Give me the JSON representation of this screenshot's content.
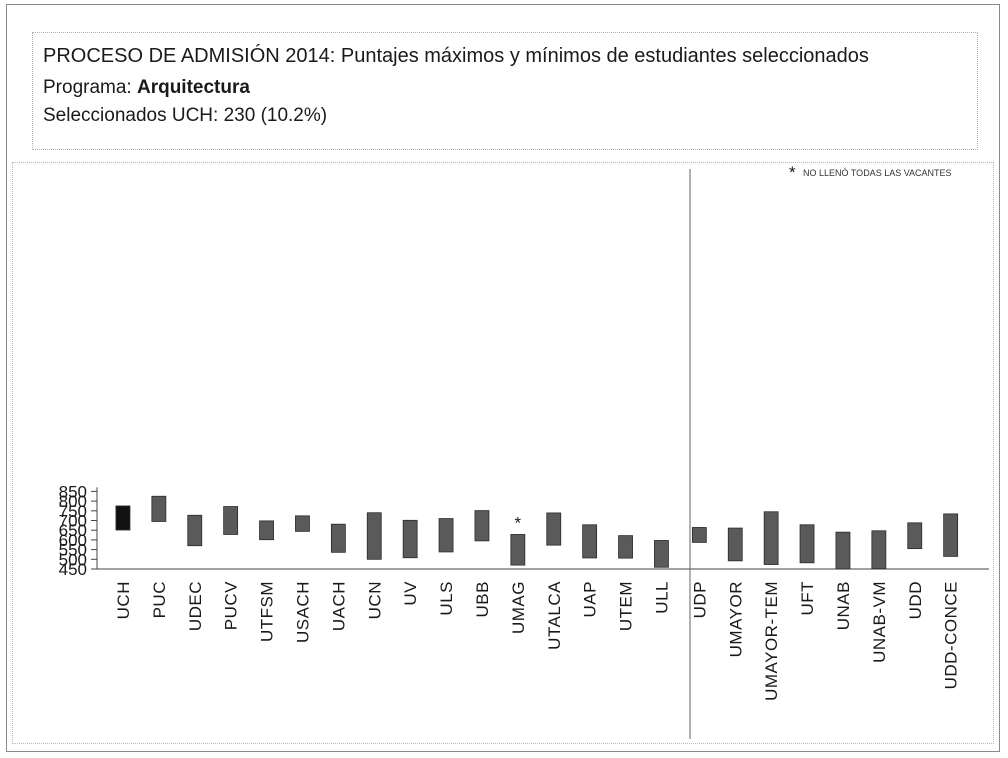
{
  "header": {
    "title": "PROCESO DE ADMISIÓN 2014: Puntajes máximos y mínimos de estudiantes seleccionados",
    "program_label": "Programa: ",
    "program_value": "Arquitectura",
    "selected_text": "Seleccionados UCH:  230 (10.2%)"
  },
  "note": {
    "symbol": "*",
    "text": "NO LLENÓ TODAS LAS VACANTES"
  },
  "colors": {
    "highlight_bar": "#111111",
    "bar": "#5a5a5a",
    "axis": "#444444",
    "divider": "#666666"
  },
  "chart_data": {
    "type": "floating-bar",
    "title": "PROCESO DE ADMISIÓN 2014: Puntajes máximos y mínimos de estudiantes seleccionados",
    "xlabel": "",
    "ylabel": "",
    "ylim": [
      450,
      850
    ],
    "yticks": [
      450,
      500,
      550,
      600,
      650,
      700,
      750,
      800,
      850
    ],
    "grid": false,
    "groups": [
      {
        "categories": [
          "UCH",
          "PUC",
          "UDEC",
          "PUCV",
          "UTFSM",
          "USACH",
          "UACH",
          "UCN",
          "UV",
          "ULS",
          "UBB",
          "UMAG",
          "UTALCA",
          "UAP",
          "UTEM",
          "ULL"
        ],
        "min": [
          651,
          695,
          570,
          628,
          601,
          644,
          536,
          500,
          508,
          538,
          595,
          470,
          573,
          507,
          506,
          459
        ],
        "max": [
          775,
          825,
          727,
          772,
          698,
          724,
          681,
          740,
          701,
          710,
          751,
          628,
          739,
          678,
          622,
          597
        ]
      },
      {
        "categories": [
          "UDP",
          "UMAYOR",
          "UMAYOR-TEM",
          "UFT",
          "UNAB",
          "UNAB-VM",
          "UDD",
          "UDD-CONCE"
        ],
        "min": [
          587,
          492,
          473,
          482,
          448,
          451,
          555,
          515
        ],
        "max": [
          664,
          661,
          745,
          678,
          640,
          647,
          688,
          734
        ]
      }
    ],
    "highlight": "UCH",
    "annotations": [
      {
        "category": "UMAG",
        "text": "*"
      }
    ]
  }
}
